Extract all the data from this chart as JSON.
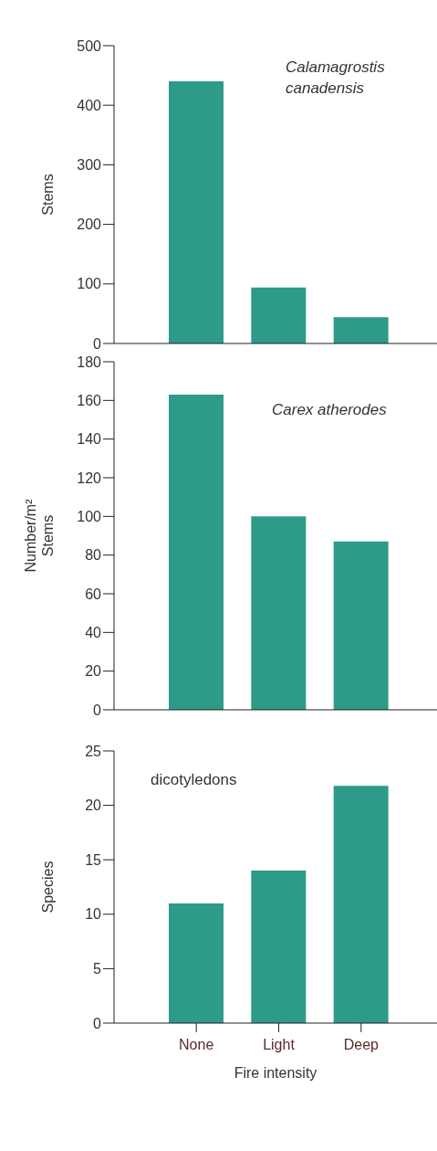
{
  "chart_data": [
    {
      "type": "bar",
      "categories": [
        null,
        null,
        null
      ],
      "values": [
        440,
        94,
        44
      ],
      "color": "#2e9a88",
      "ylabel": "Stems",
      "ylim": [
        0,
        500
      ],
      "yticks": [
        0,
        100,
        200,
        300,
        400,
        500
      ],
      "annotations": [
        "Calamagrostis\ncanadensis"
      ],
      "tick_labels": "y"
    },
    {
      "type": "bar",
      "categories": [
        null,
        null,
        null
      ],
      "values": [
        163,
        100,
        87
      ],
      "color": "#2e9a88",
      "ylabel": "Number/m²\nStems",
      "ylim": [
        0,
        180
      ],
      "yticks": [
        0,
        20,
        40,
        60,
        80,
        100,
        120,
        140,
        160,
        180
      ],
      "annotations": [
        "Carex atherodes"
      ],
      "tick_labels": "y"
    },
    {
      "type": "bar",
      "categories": [
        "None",
        "Light",
        "Deep"
      ],
      "values": [
        11,
        14,
        21.8
      ],
      "color": "#2e9a88",
      "ylabel": "Species",
      "xlabel": "Fire intensity",
      "ylim": [
        0,
        25
      ],
      "yticks": [
        0,
        5,
        10,
        15,
        20,
        25
      ],
      "annotations": [
        "dicotyledons"
      ]
    }
  ]
}
